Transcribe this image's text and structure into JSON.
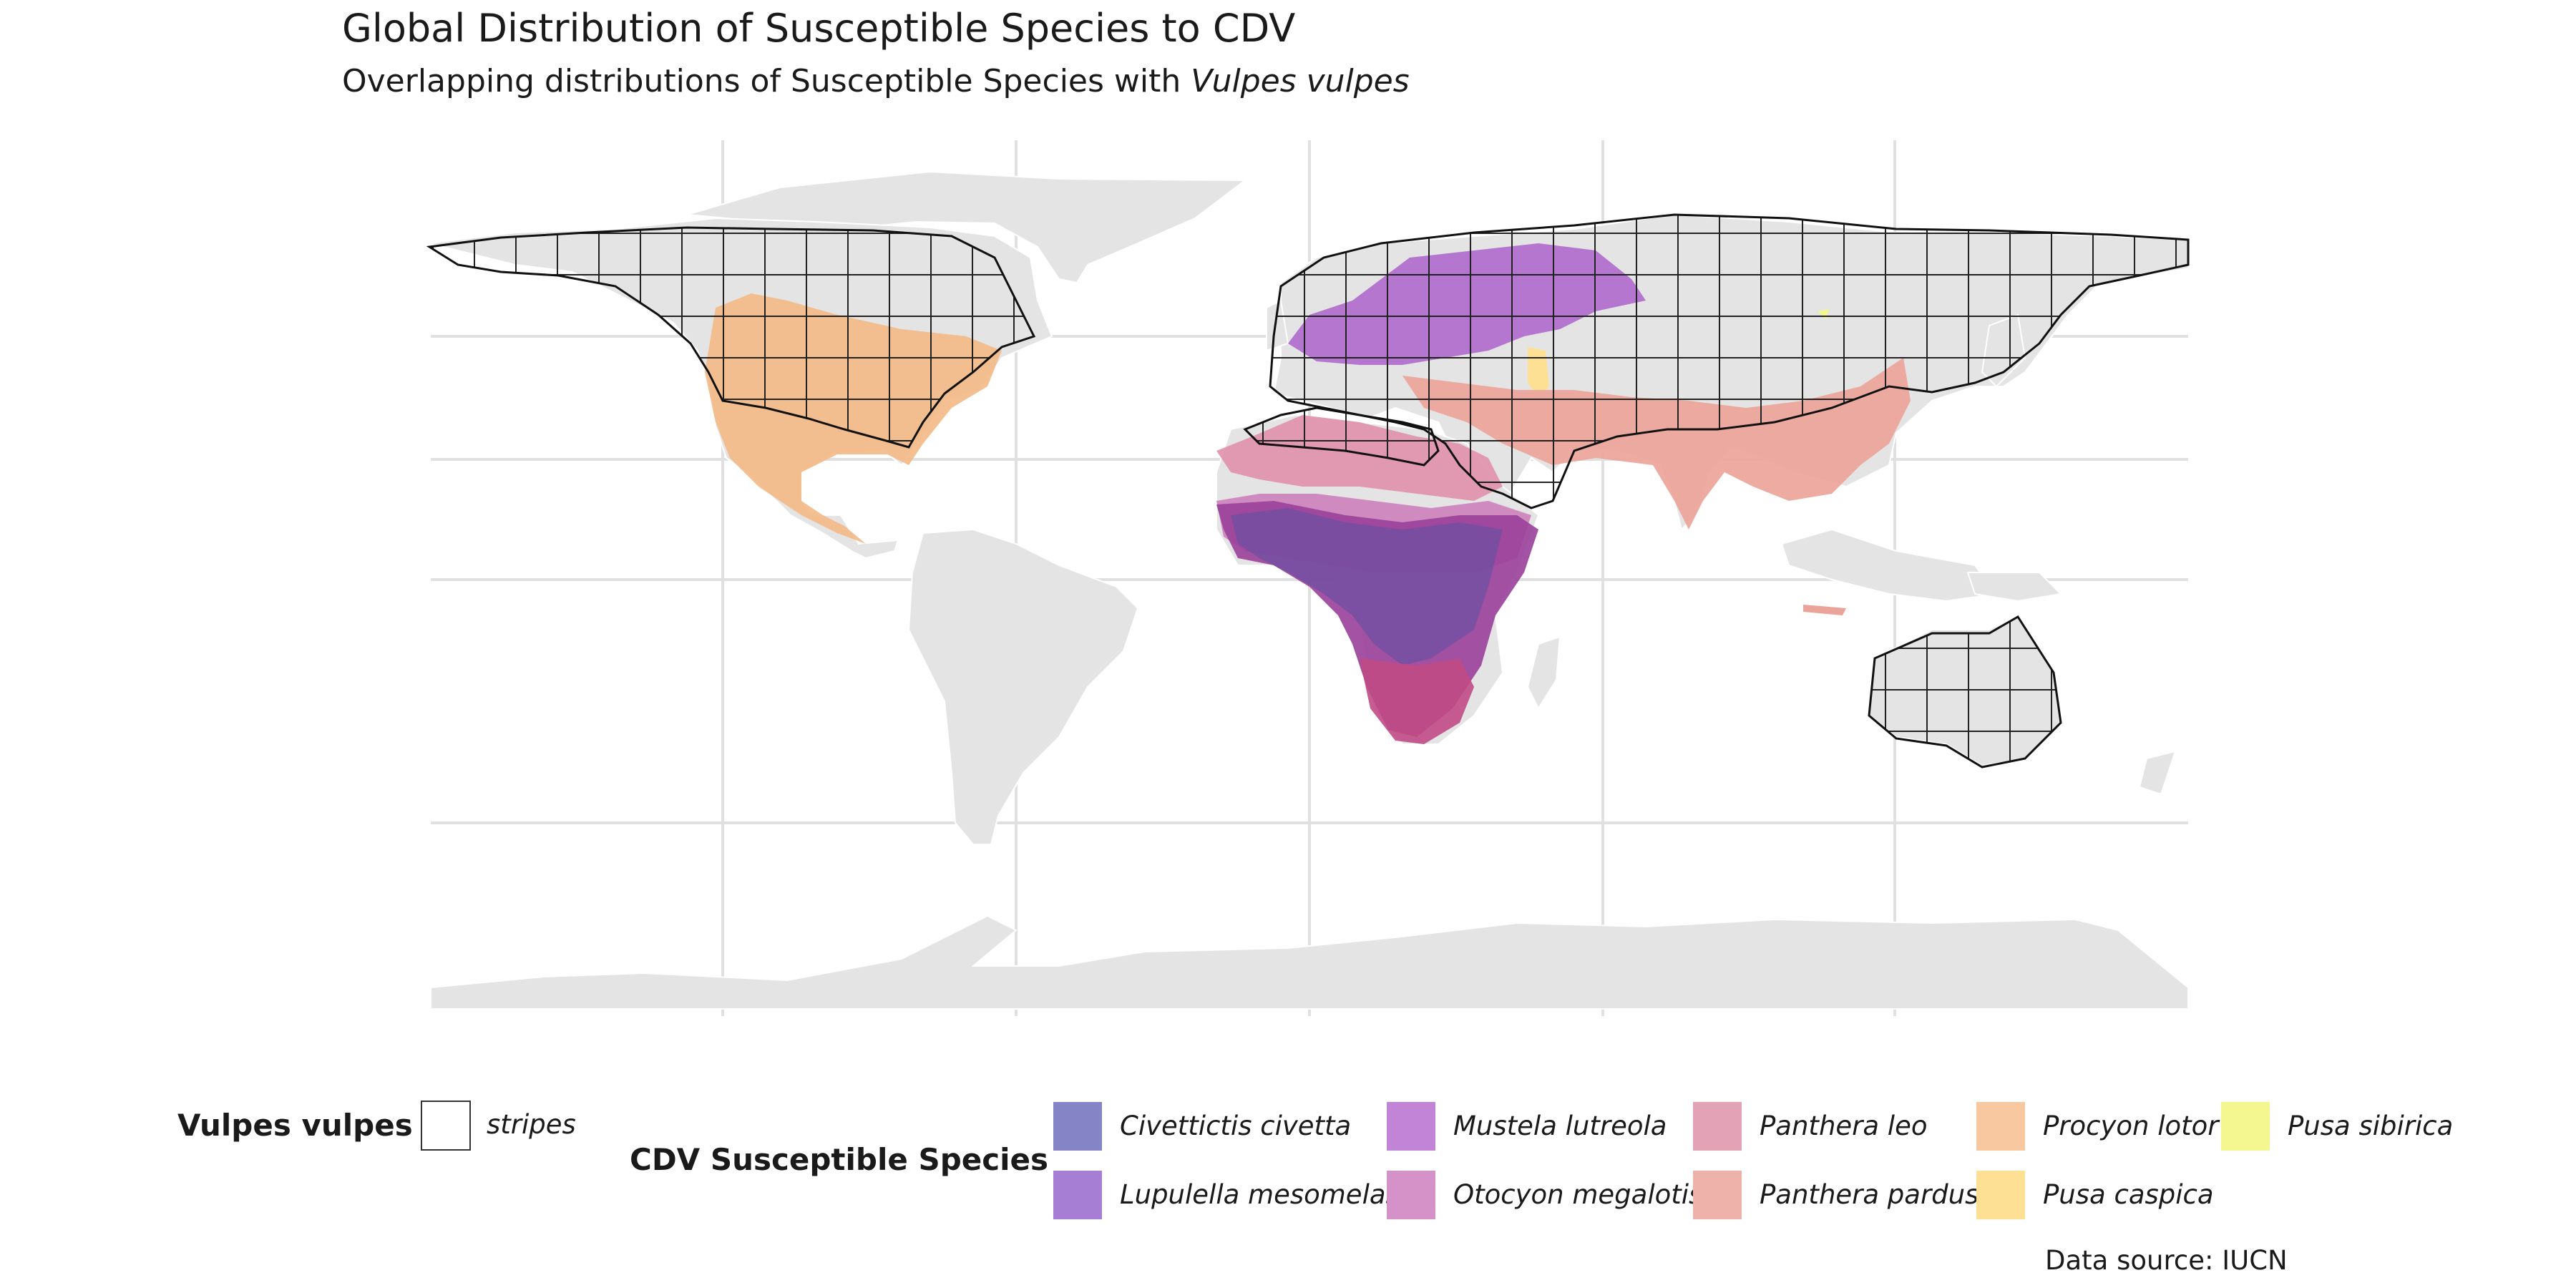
{
  "title": "Global Distribution of Susceptible Species to CDV",
  "subtitle_prefix": "Overlapping distributions of Susceptible Species with ",
  "subtitle_species": "Vulpes vulpes",
  "caption": "Data source: IUCN",
  "colors": {
    "land": "#e4e4e4",
    "grid": "#e0e0e0",
    "border": "#ffffff",
    "stripe_outline": "#111111"
  },
  "vulpes_legend": {
    "title": "Vulpes vulpes",
    "label": "stripes"
  },
  "species_legend": {
    "title": "CDV Susceptible Species",
    "items": [
      {
        "name": "Civettictis civetta",
        "color": "#8484c6"
      },
      {
        "name": "Lupulella mesomelas",
        "color": "#a67fd4"
      },
      {
        "name": "Mustela lutreola",
        "color": "#c184d6"
      },
      {
        "name": "Otocyon megalotis",
        "color": "#d492c8"
      },
      {
        "name": "Panthera leo",
        "color": "#e4a2b6"
      },
      {
        "name": "Panthera pardus",
        "color": "#efb2aa"
      },
      {
        "name": "Procyon lotor",
        "color": "#f8c8a0"
      },
      {
        "name": "Pusa caspica",
        "color": "#fde093"
      },
      {
        "name": "Pusa sibirica",
        "color": "#f4f690"
      }
    ]
  }
}
